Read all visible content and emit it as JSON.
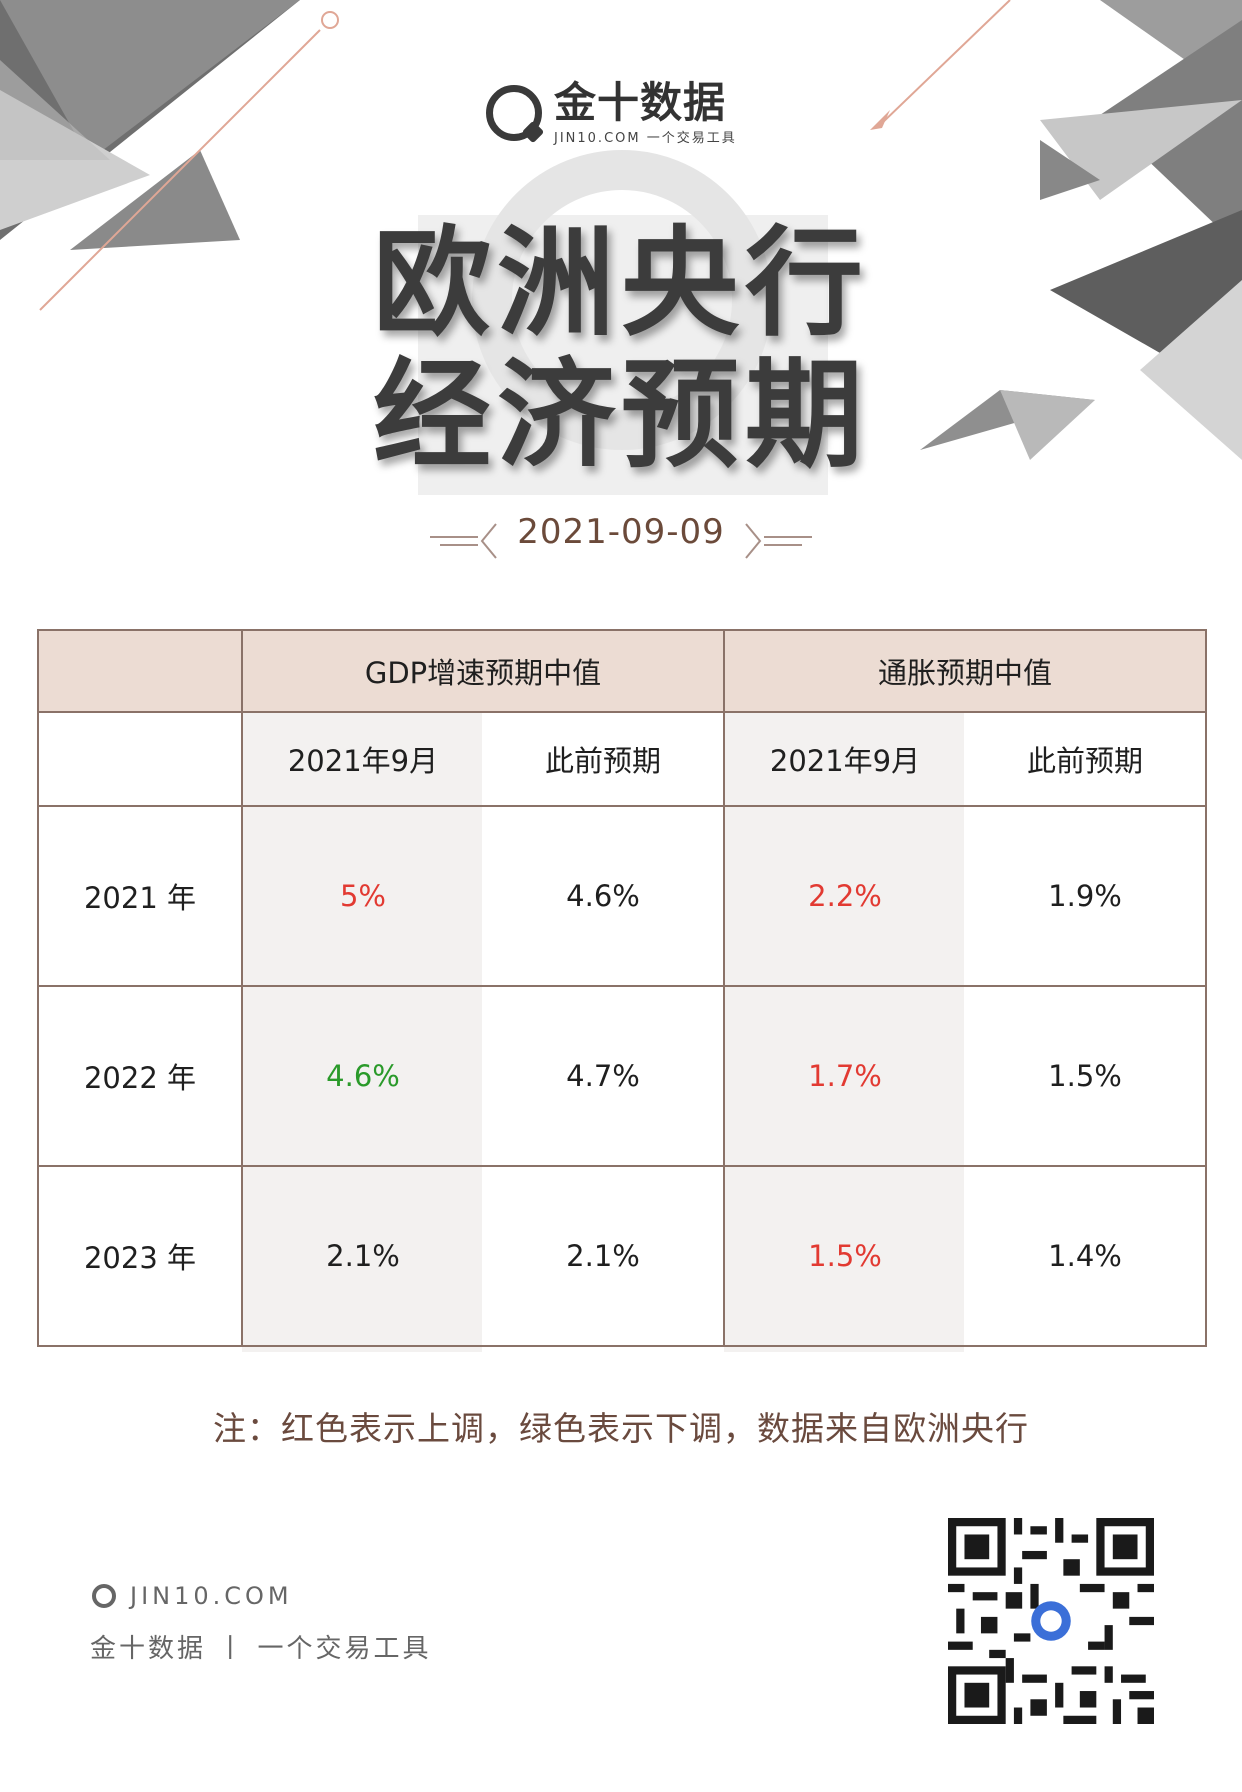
{
  "brand": {
    "name": "金十数据",
    "sub": "JIN10.COM 一个交易工具"
  },
  "title": {
    "line1": "欧洲央行",
    "line2": "经济预期"
  },
  "date": "2021-09-09",
  "table": {
    "group_headers": [
      "GDP增速预期中值",
      "通胀预期中值"
    ],
    "sub_headers": [
      "2021年9月",
      "此前预期",
      "2021年9月",
      "此前预期"
    ],
    "rows": [
      {
        "year": "2021 年",
        "cells": [
          "5%",
          "4.6%",
          "2.2%",
          "1.9%"
        ],
        "status": [
          "up",
          "",
          "up",
          ""
        ]
      },
      {
        "year": "2022 年",
        "cells": [
          "4.6%",
          "4.7%",
          "1.7%",
          "1.5%"
        ],
        "status": [
          "down",
          "",
          "up",
          ""
        ]
      },
      {
        "year": "2023 年",
        "cells": [
          "2.1%",
          "2.1%",
          "1.5%",
          "1.4%"
        ],
        "status": [
          "",
          "",
          "up",
          ""
        ]
      }
    ]
  },
  "note": "注：红色表示上调，绿色表示下调，数据来自欧洲央行",
  "footer": {
    "site": "JIN10.COM",
    "tagline": "金十数据 丨 一个交易工具"
  },
  "colors": {
    "up": "#e23a32",
    "down": "#2a9a2a",
    "header_bg": "#ecdcd3"
  }
}
